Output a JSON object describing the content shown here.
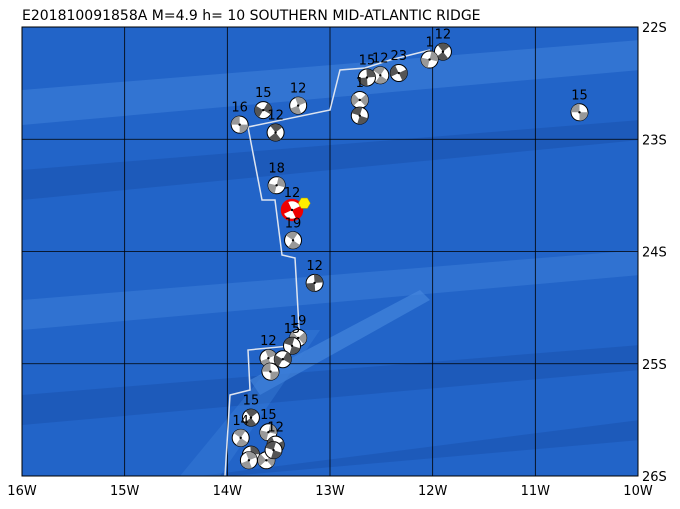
{
  "map": {
    "title": "E201810091858A M=4.9 h= 10 SOUTHERN MID-ATLANTIC RIDGE",
    "xlim": [
      -16,
      -10
    ],
    "ylim": [
      -26,
      -22
    ],
    "xticks": [
      {
        "value": -16,
        "label": "16W"
      },
      {
        "value": -15,
        "label": "15W"
      },
      {
        "value": -14,
        "label": "14W"
      },
      {
        "value": -13,
        "label": "13W"
      },
      {
        "value": -12,
        "label": "12W"
      },
      {
        "value": -11,
        "label": "11W"
      },
      {
        "value": -10,
        "label": "10W"
      }
    ],
    "yticks": [
      {
        "value": -22,
        "label": "22S"
      },
      {
        "value": -23,
        "label": "23S"
      },
      {
        "value": -24,
        "label": "24S"
      },
      {
        "value": -25,
        "label": "25S"
      },
      {
        "value": -26,
        "label": "26S"
      }
    ],
    "grid": true,
    "epicenter": {
      "lon": -13.25,
      "lat": -23.57,
      "color": "#ffee00"
    },
    "events": [
      {
        "lon": -10.57,
        "lat": -22.76,
        "depth": "15"
      },
      {
        "lon": -11.9,
        "lat": -22.22,
        "depth": "12"
      },
      {
        "lon": -12.03,
        "lat": -22.29,
        "depth": "1"
      },
      {
        "lon": -12.33,
        "lat": -22.41,
        "depth": "23"
      },
      {
        "lon": -12.51,
        "lat": -22.43,
        "depth": "12"
      },
      {
        "lon": -12.64,
        "lat": -22.45,
        "depth": "15"
      },
      {
        "lon": -12.71,
        "lat": -22.65,
        "depth": "1"
      },
      {
        "lon": -12.71,
        "lat": -22.79
      },
      {
        "lon": -13.31,
        "lat": -22.7,
        "depth": "12"
      },
      {
        "lon": -13.65,
        "lat": -22.74,
        "depth": "15"
      },
      {
        "lon": -13.88,
        "lat": -22.87,
        "depth": "16"
      },
      {
        "lon": -13.53,
        "lat": -22.94,
        "depth": "12"
      },
      {
        "lon": -13.52,
        "lat": -23.41,
        "depth": "18"
      },
      {
        "lon": -13.37,
        "lat": -23.63,
        "depth": "12",
        "highlight": true
      },
      {
        "lon": -13.36,
        "lat": -23.9,
        "depth": "19"
      },
      {
        "lon": -13.15,
        "lat": -24.28,
        "depth": "12"
      },
      {
        "lon": -13.31,
        "lat": -24.77,
        "depth": "19"
      },
      {
        "lon": -13.37,
        "lat": -24.84,
        "depth": "15"
      },
      {
        "lon": -13.6,
        "lat": -24.95,
        "depth": "12"
      },
      {
        "lon": -13.46,
        "lat": -24.96
      },
      {
        "lon": -13.58,
        "lat": -25.07
      },
      {
        "lon": -13.77,
        "lat": -25.48,
        "depth": "15"
      },
      {
        "lon": -13.6,
        "lat": -25.61,
        "depth": "15"
      },
      {
        "lon": -13.53,
        "lat": -25.72,
        "depth": "12"
      },
      {
        "lon": -13.87,
        "lat": -25.66,
        "depth": "14"
      },
      {
        "lon": -13.77,
        "lat": -25.81
      },
      {
        "lon": -13.62,
        "lat": -25.86
      },
      {
        "lon": -13.55,
        "lat": -25.77
      },
      {
        "lon": -13.79,
        "lat": -25.86
      }
    ]
  }
}
